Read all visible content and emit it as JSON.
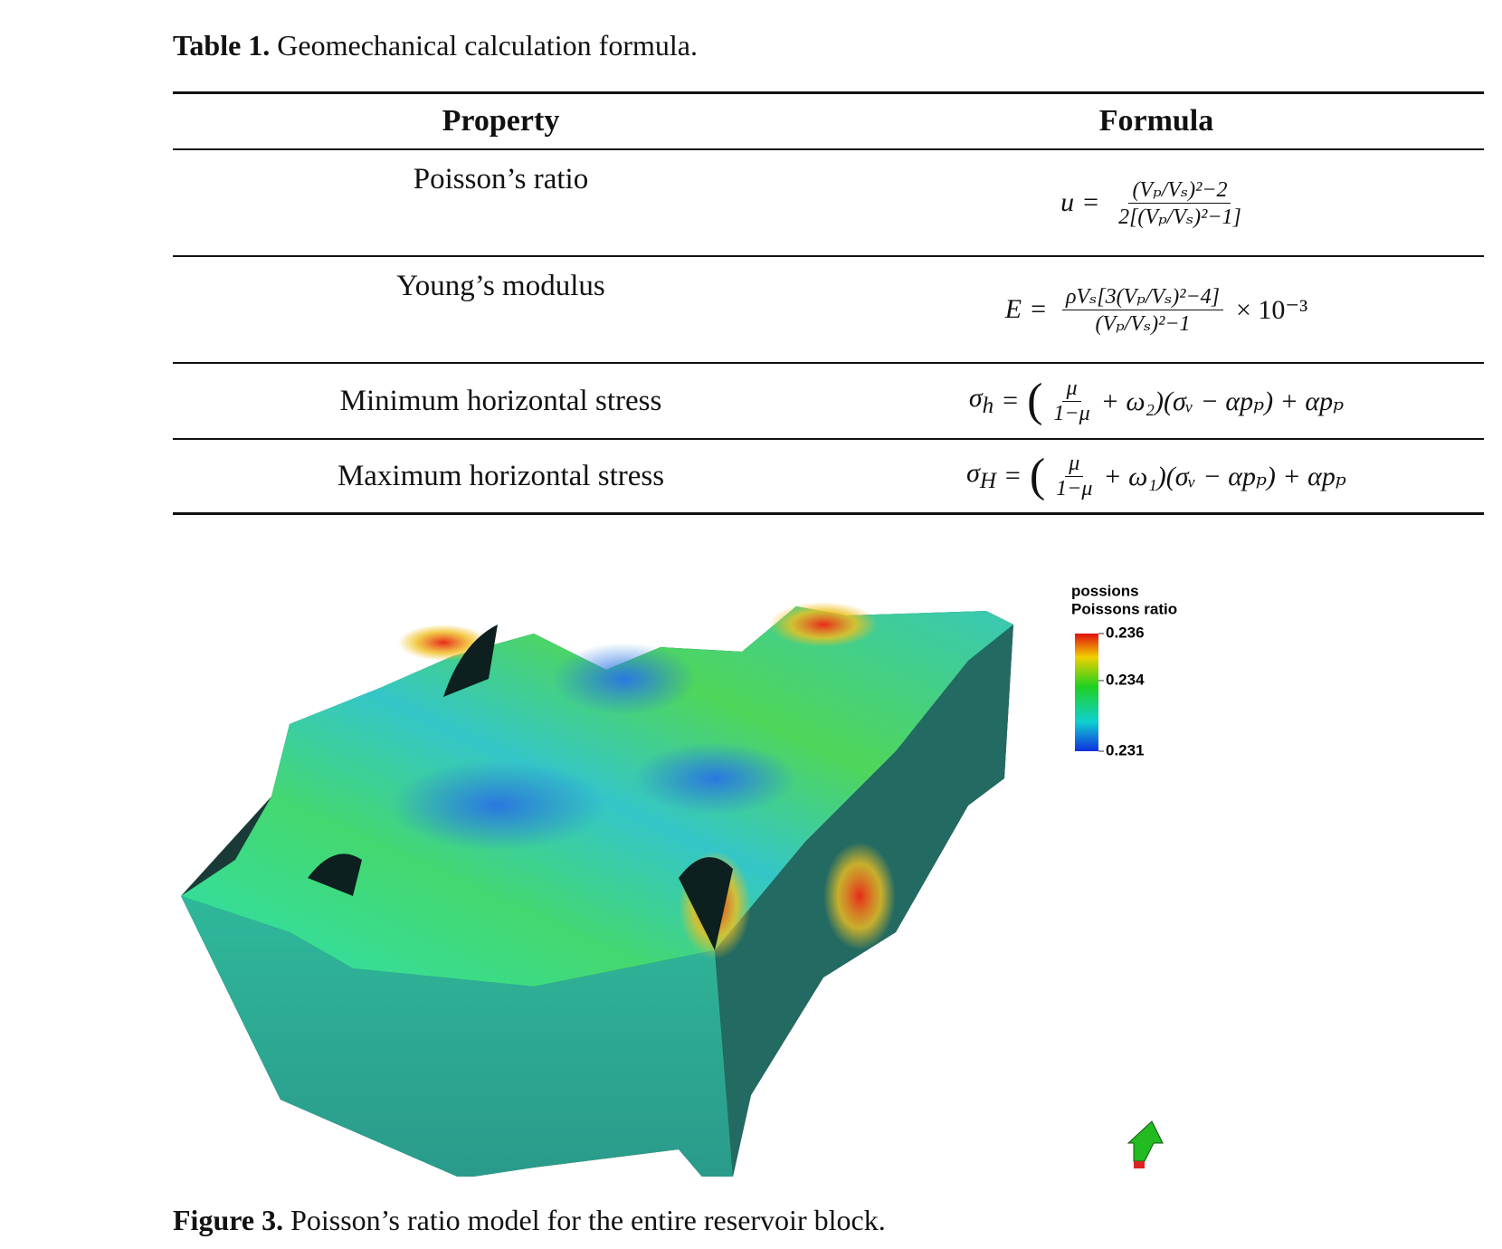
{
  "table": {
    "caption_label": "Table 1.",
    "caption": "Geomechanical calculation formula.",
    "headers": [
      "Property",
      "Formula"
    ],
    "rows": [
      {
        "property": "Poisson’s ratio",
        "formula": {
          "lhs": "u",
          "relation": "=",
          "numerator": "(Vₚ/Vₛ)²−2",
          "denominator": "2[(Vₚ/Vₛ)²−1]"
        }
      },
      {
        "property": "Young’s modulus",
        "formula": {
          "lhs": "E",
          "relation": "=",
          "numerator": "ρVₛ[3(Vₚ/Vₛ)²−4]",
          "denominator": "(Vₚ/Vₛ)²−1",
          "factor": "× 10⁻³"
        }
      },
      {
        "property": "Minimum horizontal stress",
        "formula": {
          "lhs": "σ",
          "lhs_sub": "h",
          "relation": "=",
          "open": "(",
          "numerator": "μ",
          "denominator": "1−μ",
          "rest": "+ ω₂)(σᵥ − αpₚ) + αpₚ"
        }
      },
      {
        "property": "Maximum horizontal stress",
        "formula": {
          "lhs": "σ",
          "lhs_sub": "H",
          "relation": "=",
          "open": "(",
          "numerator": "μ",
          "denominator": "1−μ",
          "rest": "+ ω₁)(σᵥ − αpₚ) + αpₚ"
        }
      }
    ]
  },
  "figure": {
    "colorbar": {
      "title": [
        "possions",
        "Poissons ratio"
      ],
      "ticks": [
        0.236,
        0.234,
        0.231
      ]
    },
    "caption_label": "Figure 3.",
    "caption": "Poisson’s ratio model for the entire reservoir block."
  }
}
